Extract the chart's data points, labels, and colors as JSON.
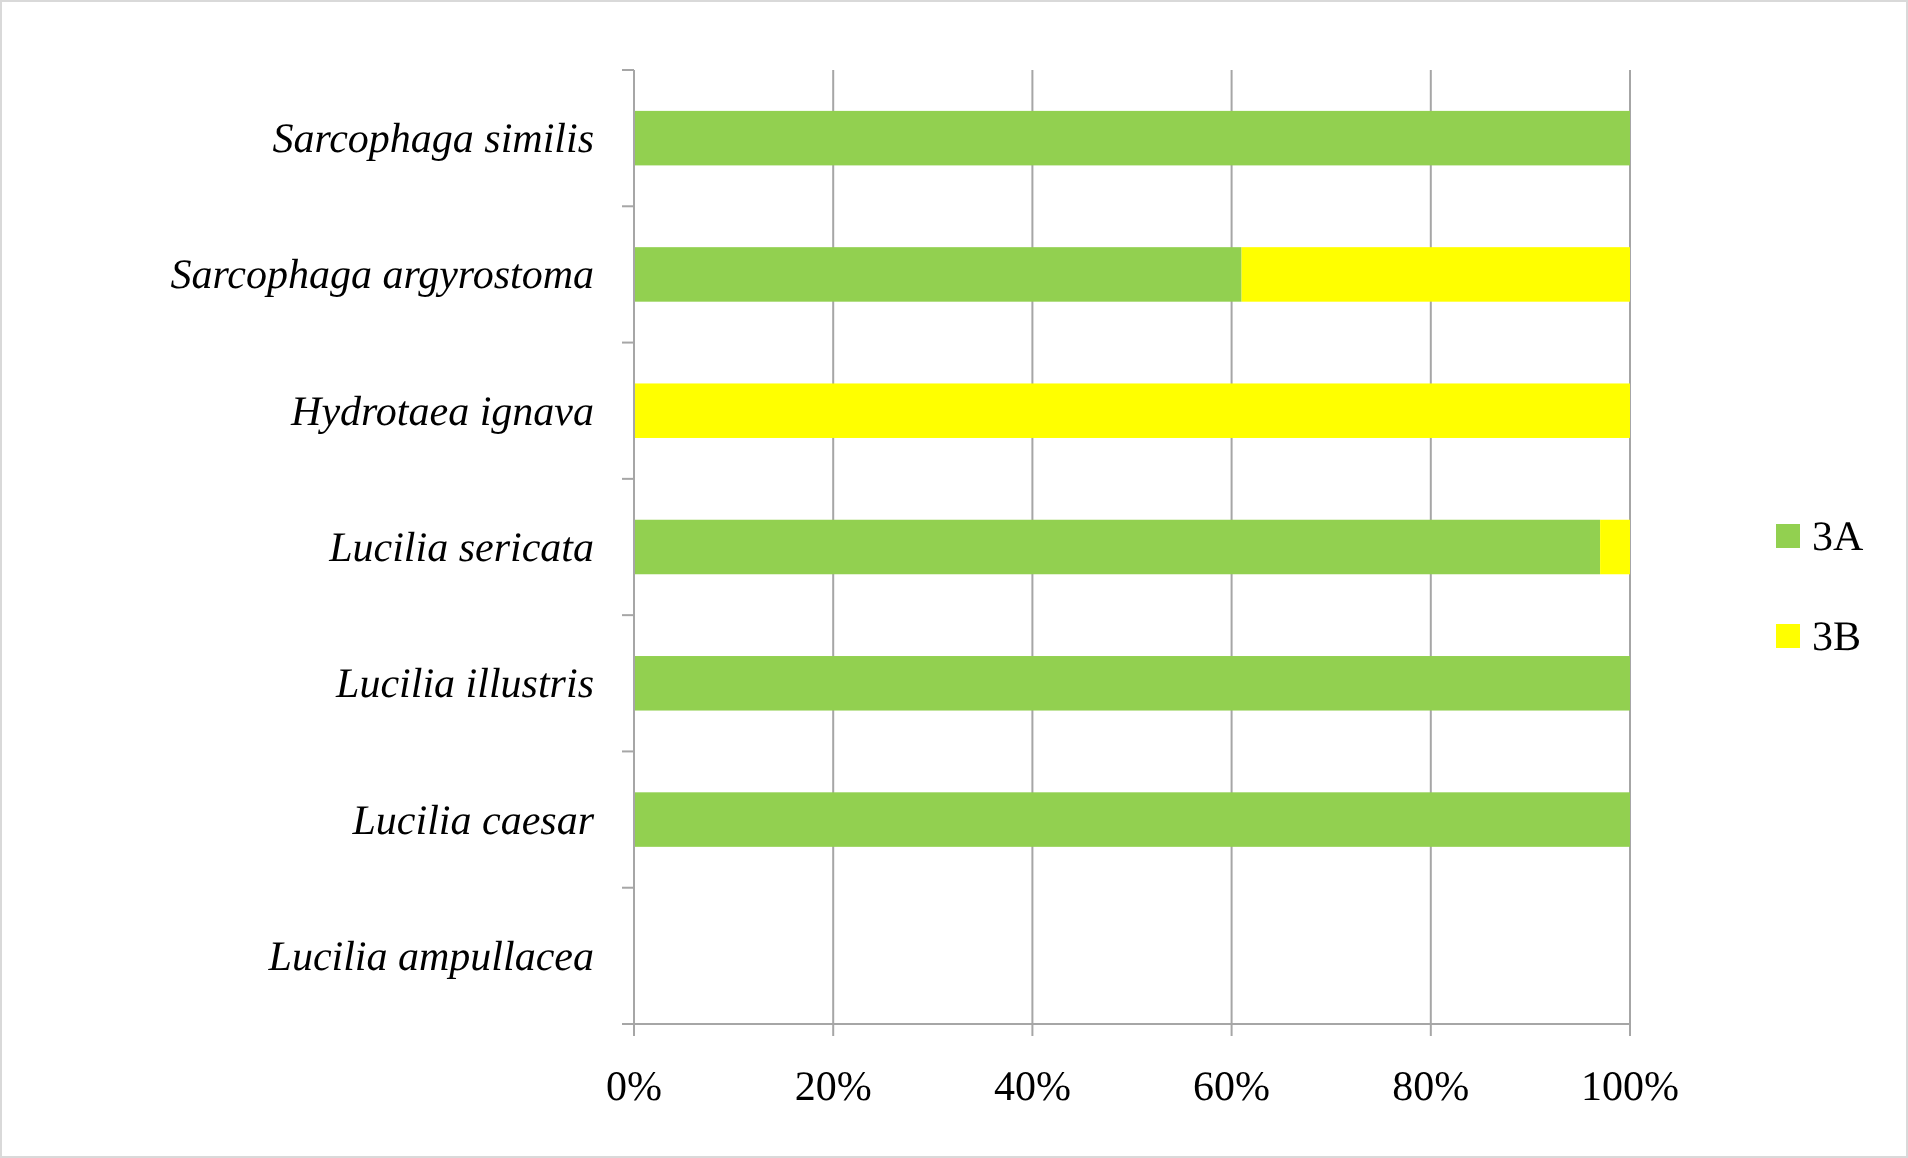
{
  "chart_data": {
    "type": "bar",
    "orientation": "horizontal",
    "stacked": true,
    "categories": [
      "Sarcophaga similis",
      "Sarcophaga argyrostoma",
      "Hydrotaea ignava",
      "Lucilia sericata",
      "Lucilia illustris",
      "Lucilia caesar",
      "Lucilia ampullacea"
    ],
    "series": [
      {
        "name": "3A",
        "color": "#92d050",
        "values": [
          1,
          0.61,
          0,
          0.97,
          1,
          1,
          null
        ]
      },
      {
        "name": "3B",
        "color": "#ffff00",
        "values": [
          0,
          0.39,
          1,
          0.03,
          0,
          0,
          null
        ]
      }
    ],
    "xlim": [
      0,
      1
    ],
    "xticks": [
      {
        "value": 0,
        "label": "0%"
      },
      {
        "value": 0.2,
        "label": "20%"
      },
      {
        "value": 0.4,
        "label": "40%"
      },
      {
        "value": 0.6,
        "label": "60%"
      },
      {
        "value": 0.8,
        "label": "80%"
      },
      {
        "value": 1,
        "label": "100%"
      }
    ],
    "grid": "x",
    "legend": "right"
  }
}
